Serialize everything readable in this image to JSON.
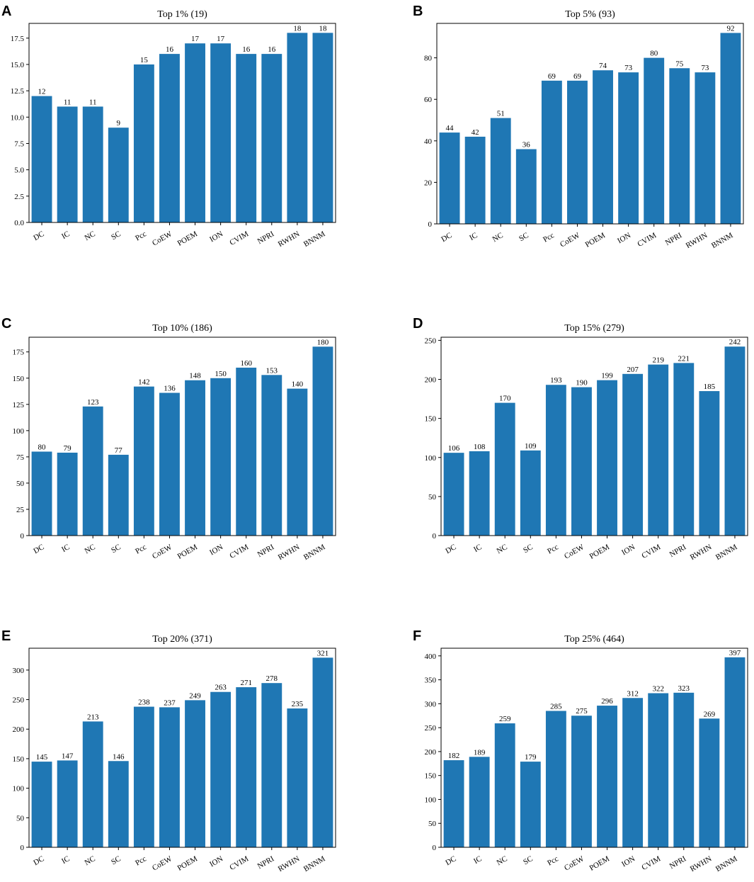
{
  "chart_data": [
    {
      "panel": "A",
      "type": "bar",
      "title": "Top 1% (19)",
      "categories": [
        "DC",
        "IC",
        "NC",
        "SC",
        "Pcc",
        "CoEW",
        "POEM",
        "ION",
        "CVIM",
        "NPRI",
        "RWHN",
        "BNNM"
      ],
      "values": [
        12,
        11,
        11,
        9,
        15,
        16,
        17,
        17,
        16,
        16,
        18,
        18
      ],
      "data_labels": [
        "12",
        "11",
        "11",
        "9",
        "15",
        "16",
        "17",
        "17",
        "16",
        "16",
        "18",
        "18"
      ],
      "yticks": [
        0,
        2.5,
        5,
        7.5,
        10,
        12.5,
        15,
        17.5
      ],
      "ytick_labels": [
        "0.0",
        "2.5",
        "5.0",
        "7.5",
        "10.0",
        "12.5",
        "15.0",
        "17.5"
      ],
      "ylim": [
        0,
        18.9
      ],
      "xlabel": "",
      "ylabel": ""
    },
    {
      "panel": "B",
      "type": "bar",
      "title": "Top 5% (93)",
      "categories": [
        "DC",
        "IC",
        "NC",
        "SC",
        "Pcc",
        "CoEW",
        "POEM",
        "ION",
        "CVIM",
        "NPRI",
        "RWHN",
        "BNNM"
      ],
      "values": [
        44,
        42,
        51,
        36,
        69,
        69,
        74,
        73,
        80,
        75,
        73,
        92
      ],
      "data_labels": [
        "44",
        "42",
        "51",
        "36",
        "69",
        "69",
        "74",
        "73",
        "80",
        "75",
        "73",
        "92"
      ],
      "yticks": [
        0,
        20,
        40,
        60,
        80
      ],
      "ytick_labels": [
        "0",
        "20",
        "40",
        "60",
        "80"
      ],
      "ylim": [
        0,
        96.6
      ],
      "xlabel": "",
      "ylabel": ""
    },
    {
      "panel": "C",
      "type": "bar",
      "title": "Top 10% (186)",
      "categories": [
        "DC",
        "IC",
        "NC",
        "SC",
        "Pcc",
        "CoEW",
        "POEM",
        "ION",
        "CVIM",
        "NPRI",
        "RWHN",
        "BNNM"
      ],
      "values": [
        80,
        79,
        123,
        77,
        142,
        136,
        148,
        150,
        160,
        153,
        140,
        180
      ],
      "data_labels": [
        "80",
        "79",
        "123",
        "77",
        "142",
        "136",
        "148",
        "150",
        "160",
        "153",
        "140",
        "180"
      ],
      "yticks": [
        0,
        25,
        50,
        75,
        100,
        125,
        150,
        175
      ],
      "ytick_labels": [
        "0",
        "25",
        "50",
        "75",
        "100",
        "125",
        "150",
        "175"
      ],
      "ylim": [
        0,
        189
      ],
      "xlabel": "",
      "ylabel": ""
    },
    {
      "panel": "D",
      "type": "bar",
      "title": "Top 15% (279)",
      "categories": [
        "DC",
        "IC",
        "NC",
        "SC",
        "Pcc",
        "CoEW",
        "POEM",
        "ION",
        "CVIM",
        "NPRI",
        "RWHN",
        "BNNM"
      ],
      "values": [
        106,
        108,
        170,
        109,
        193,
        190,
        199,
        207,
        219,
        221,
        185,
        242
      ],
      "data_labels": [
        "106",
        "108",
        "170",
        "109",
        "193",
        "190",
        "199",
        "207",
        "219",
        "221",
        "185",
        "242"
      ],
      "yticks": [
        0,
        50,
        100,
        150,
        200,
        250
      ],
      "ytick_labels": [
        "0",
        "50",
        "100",
        "150",
        "200",
        "250"
      ],
      "ylim": [
        0,
        254
      ],
      "xlabel": "",
      "ylabel": ""
    },
    {
      "panel": "E",
      "type": "bar",
      "title": "Top 20% (371)",
      "categories": [
        "DC",
        "IC",
        "NC",
        "SC",
        "Pcc",
        "CoEW",
        "POEM",
        "ION",
        "CVIM",
        "NPRI",
        "RWHN",
        "BNNM"
      ],
      "values": [
        145,
        147,
        213,
        146,
        238,
        237,
        249,
        263,
        271,
        278,
        235,
        321
      ],
      "data_labels": [
        "145",
        "147",
        "213",
        "146",
        "238",
        "237",
        "249",
        "263",
        "271",
        "278",
        "235",
        "321"
      ],
      "yticks": [
        0,
        50,
        100,
        150,
        200,
        250,
        300
      ],
      "ytick_labels": [
        "0",
        "50",
        "100",
        "150",
        "200",
        "250",
        "300"
      ],
      "ylim": [
        0,
        337
      ],
      "xlabel": "",
      "ylabel": ""
    },
    {
      "panel": "F",
      "type": "bar",
      "title": "Top 25% (464)",
      "categories": [
        "DC",
        "IC",
        "NC",
        "SC",
        "Pcc",
        "CoEW",
        "POEM",
        "ION",
        "CVIM",
        "NPRI",
        "RWHN",
        "BNNM"
      ],
      "values": [
        182,
        189,
        259,
        179,
        285,
        275,
        296,
        312,
        322,
        323,
        269,
        397
      ],
      "data_labels": [
        "182",
        "189",
        "259",
        "179",
        "285",
        "275",
        "296",
        "312",
        "322",
        "323",
        "269",
        "397"
      ],
      "yticks": [
        0,
        50,
        100,
        150,
        200,
        250,
        300,
        350,
        400
      ],
      "ytick_labels": [
        "0",
        "50",
        "100",
        "150",
        "200",
        "250",
        "300",
        "350",
        "400"
      ],
      "ylim": [
        0,
        416
      ],
      "xlabel": "",
      "ylabel": ""
    }
  ]
}
